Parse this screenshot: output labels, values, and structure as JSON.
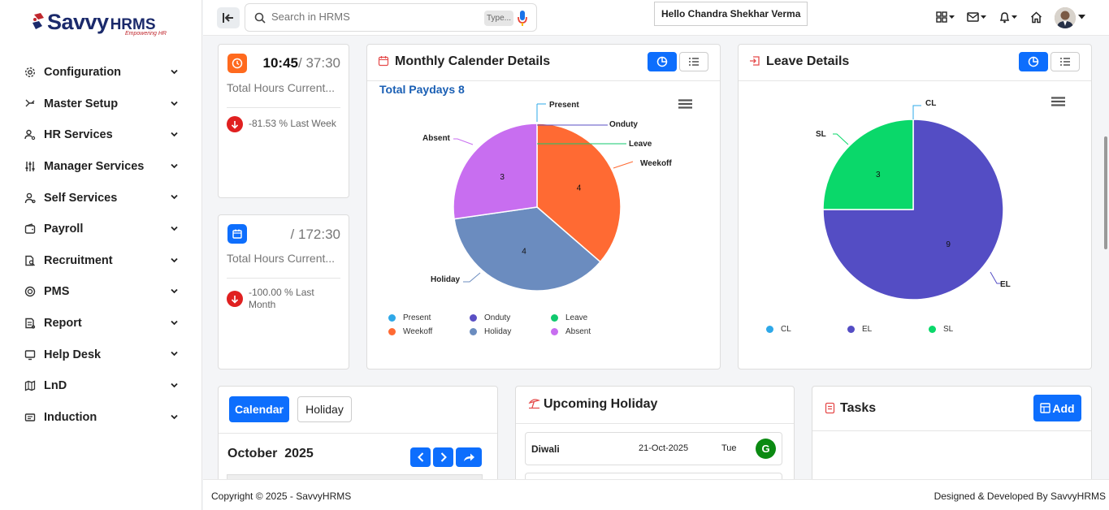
{
  "logo": {
    "word": "Savvy",
    "suffix": "HRMS",
    "tagline": "Empowering HR"
  },
  "sidebar": {
    "items": [
      {
        "label": "Configuration",
        "icon": "gear-icon"
      },
      {
        "label": "Master Setup",
        "icon": "hierarchy-icon"
      },
      {
        "label": "HR Services",
        "icon": "user-gear-icon"
      },
      {
        "label": "Manager Services",
        "icon": "sliders-icon"
      },
      {
        "label": "Self Services",
        "icon": "user-icon"
      },
      {
        "label": "Payroll",
        "icon": "wallet-icon"
      },
      {
        "label": "Recruitment",
        "icon": "document-search-icon"
      },
      {
        "label": "PMS",
        "icon": "target-icon"
      },
      {
        "label": "Report",
        "icon": "report-icon"
      },
      {
        "label": "Help Desk",
        "icon": "monitor-icon"
      },
      {
        "label": "LnD",
        "icon": "map-icon"
      },
      {
        "label": "Induction",
        "icon": "id-card-icon"
      }
    ]
  },
  "topbar": {
    "search_placeholder": "Search in HRMS",
    "type_label": "Type...",
    "greeting": "Hello Chandra Shekhar Verma"
  },
  "hours_card_1": {
    "current": "10:45",
    "total": "37:30",
    "label": "Total Hours Current...",
    "change": "-81.53 % Last Week"
  },
  "hours_card_2": {
    "current": "",
    "total": "172:30",
    "label": "Total Hours Current...",
    "change_line1": "-100.00 % Last",
    "change_line2": "Month"
  },
  "monthly": {
    "title": "Monthly Calender Details",
    "paydays": "Total Paydays 8",
    "labels": {
      "present": "Present",
      "onduty": "Onduty",
      "leave": "Leave",
      "weekoff": "Weekoff",
      "holiday": "Holiday",
      "absent": "Absent"
    },
    "legend": [
      "Present",
      "Onduty",
      "Leave",
      "Weekoff",
      "Holiday",
      "Absent"
    ]
  },
  "leave": {
    "title": "Leave Details",
    "legend": [
      "CL",
      "EL",
      "SL"
    ]
  },
  "chart_data": [
    {
      "type": "pie",
      "title": "Monthly Calender Details",
      "categories": [
        "Present",
        "Onduty",
        "Leave",
        "Weekoff",
        "Holiday",
        "Absent"
      ],
      "values": [
        0,
        0,
        0,
        4,
        4,
        3
      ],
      "colors": [
        "#2ea8e8",
        "#5a4fc4",
        "#10c96e",
        "#ff6a33",
        "#6b8cbf",
        "#c86ef0"
      ]
    },
    {
      "type": "pie",
      "title": "Leave Details",
      "categories": [
        "CL",
        "EL",
        "SL"
      ],
      "values": [
        0,
        9,
        3
      ],
      "colors": [
        "#2ea8e8",
        "#544dc4",
        "#0ad86a"
      ]
    }
  ],
  "calendar": {
    "tab_calendar": "Calendar",
    "tab_holiday": "Holiday",
    "month": "October",
    "year": "2025"
  },
  "holiday": {
    "title": "Upcoming Holiday",
    "rows": [
      {
        "name": "Diwali",
        "date": "21-Oct-2025",
        "day": "Tue",
        "badge": "G"
      }
    ]
  },
  "tasks": {
    "title": "Tasks",
    "add_label": "Add"
  },
  "footer": {
    "left": "Copyright © 2025 - SavvyHRMS",
    "right": "Designed & Developed By SavvyHRMS"
  }
}
